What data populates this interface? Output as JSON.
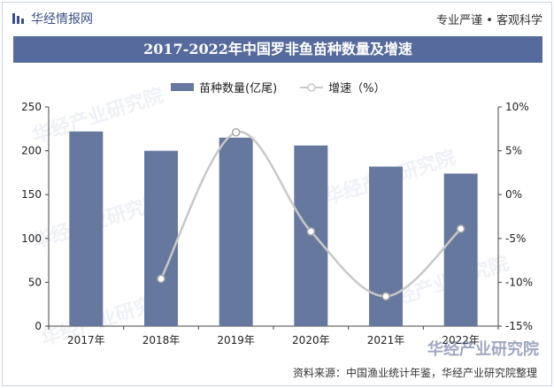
{
  "header": {
    "brand": "华经情报网",
    "tagline": "专业严谨 • 客观科学",
    "title": "2017-2022年中国罗非鱼苗种数量及增速"
  },
  "legend": {
    "bar_label": "苗种数量(亿尾)",
    "line_label": "增速（%）"
  },
  "colors": {
    "bar": "#66789e",
    "line": "#c8c8c8",
    "title_bg": "#566a9d"
  },
  "chart_data": {
    "type": "bar",
    "categories": [
      "2017年",
      "2018年",
      "2019年",
      "2020年",
      "2021年",
      "2022年"
    ],
    "series": [
      {
        "name": "苗种数量(亿尾)",
        "type": "bar",
        "axis": "left",
        "values": [
          222,
          200,
          215,
          206,
          182,
          174
        ]
      },
      {
        "name": "增速（%）",
        "type": "line",
        "axis": "right",
        "values": [
          null,
          -9.6,
          7.1,
          -4.2,
          -11.6,
          -3.9
        ]
      }
    ],
    "y_left": {
      "ylim": [
        0,
        250
      ],
      "ticks": [
        "0",
        "50",
        "100",
        "150",
        "200",
        "250"
      ]
    },
    "y_right": {
      "ylim": [
        -15,
        10
      ],
      "ticks": [
        "-15%",
        "-10%",
        "-5%",
        "0%",
        "5%",
        "10%"
      ]
    },
    "grid": false,
    "legend_position": "top-center"
  },
  "watermark": {
    "text": "华经产业研究院"
  },
  "source": "资料来源：中国渔业统计年鉴，华经产业研究院整理"
}
